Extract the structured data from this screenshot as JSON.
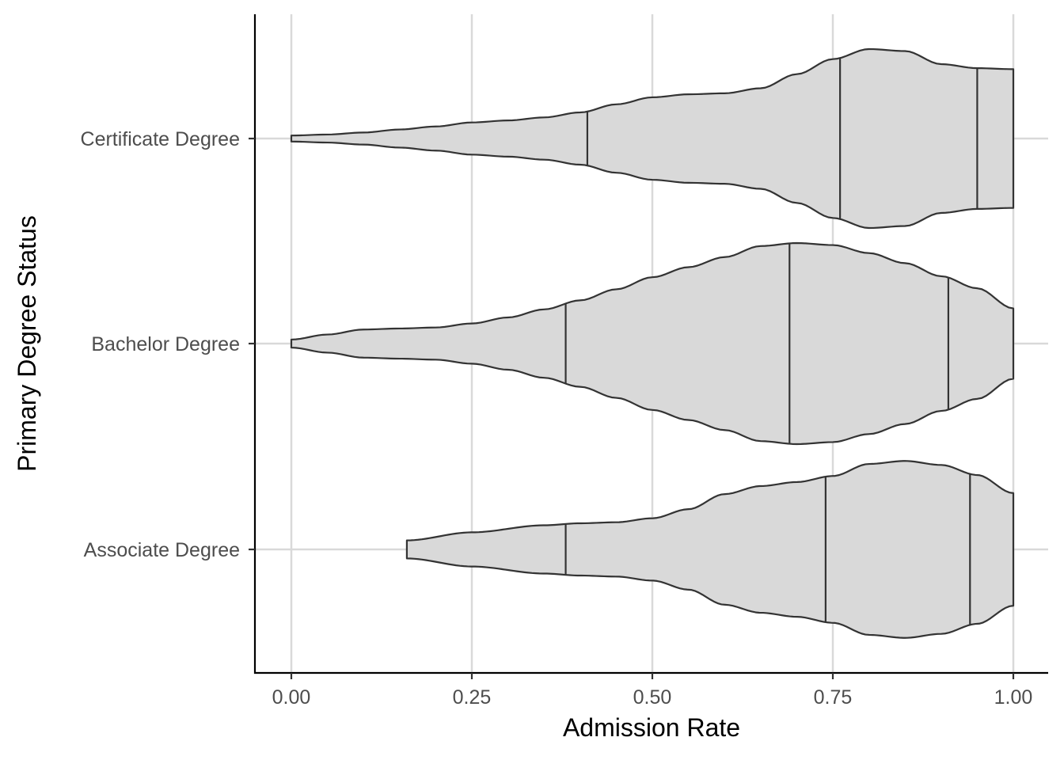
{
  "chart_data": {
    "type": "violin",
    "orientation": "horizontal",
    "xlabel": "Admission Rate",
    "ylabel": "Primary Degree Status",
    "xlim": [
      0.0,
      1.0
    ],
    "x_ticks": [
      "0.00",
      "0.25",
      "0.50",
      "0.75",
      "1.00"
    ],
    "grid": true,
    "categories": [
      "Associate Degree",
      "Bachelor Degree",
      "Certificate Degree"
    ],
    "quantile_lines": [
      0.25,
      0.5,
      0.75
    ],
    "series": [
      {
        "category": "Associate Degree",
        "min": 0.16,
        "max": 1.0,
        "quantiles": [
          0.38,
          0.74,
          0.94
        ],
        "density": [
          [
            0.16,
            0.09
          ],
          [
            0.25,
            0.17
          ],
          [
            0.35,
            0.24
          ],
          [
            0.4,
            0.26
          ],
          [
            0.45,
            0.27
          ],
          [
            0.5,
            0.31
          ],
          [
            0.55,
            0.4
          ],
          [
            0.6,
            0.55
          ],
          [
            0.65,
            0.63
          ],
          [
            0.7,
            0.67
          ],
          [
            0.75,
            0.73
          ],
          [
            0.8,
            0.85
          ],
          [
            0.85,
            0.88
          ],
          [
            0.9,
            0.84
          ],
          [
            0.95,
            0.74
          ],
          [
            1.0,
            0.56
          ]
        ]
      },
      {
        "category": "Bachelor Degree",
        "min": 0.0,
        "max": 1.0,
        "quantiles": [
          0.38,
          0.69,
          0.91
        ],
        "density": [
          [
            0.0,
            0.04
          ],
          [
            0.05,
            0.09
          ],
          [
            0.1,
            0.14
          ],
          [
            0.15,
            0.15
          ],
          [
            0.2,
            0.16
          ],
          [
            0.25,
            0.2
          ],
          [
            0.3,
            0.26
          ],
          [
            0.35,
            0.34
          ],
          [
            0.4,
            0.43
          ],
          [
            0.45,
            0.54
          ],
          [
            0.5,
            0.66
          ],
          [
            0.55,
            0.76
          ],
          [
            0.6,
            0.86
          ],
          [
            0.65,
            0.97
          ],
          [
            0.7,
            1.0
          ],
          [
            0.75,
            0.98
          ],
          [
            0.8,
            0.9
          ],
          [
            0.85,
            0.8
          ],
          [
            0.9,
            0.67
          ],
          [
            0.95,
            0.55
          ],
          [
            1.0,
            0.35
          ]
        ]
      },
      {
        "category": "Certificate Degree",
        "min": 0.0,
        "max": 1.0,
        "quantiles": [
          0.41,
          0.76,
          0.95
        ],
        "density": [
          [
            0.0,
            0.03
          ],
          [
            0.05,
            0.04
          ],
          [
            0.1,
            0.06
          ],
          [
            0.15,
            0.09
          ],
          [
            0.2,
            0.12
          ],
          [
            0.25,
            0.16
          ],
          [
            0.3,
            0.18
          ],
          [
            0.35,
            0.21
          ],
          [
            0.4,
            0.26
          ],
          [
            0.45,
            0.34
          ],
          [
            0.5,
            0.41
          ],
          [
            0.55,
            0.44
          ],
          [
            0.6,
            0.45
          ],
          [
            0.65,
            0.5
          ],
          [
            0.7,
            0.64
          ],
          [
            0.75,
            0.79
          ],
          [
            0.8,
            0.89
          ],
          [
            0.85,
            0.87
          ],
          [
            0.9,
            0.74
          ],
          [
            0.95,
            0.7
          ],
          [
            1.0,
            0.69
          ]
        ]
      }
    ]
  }
}
